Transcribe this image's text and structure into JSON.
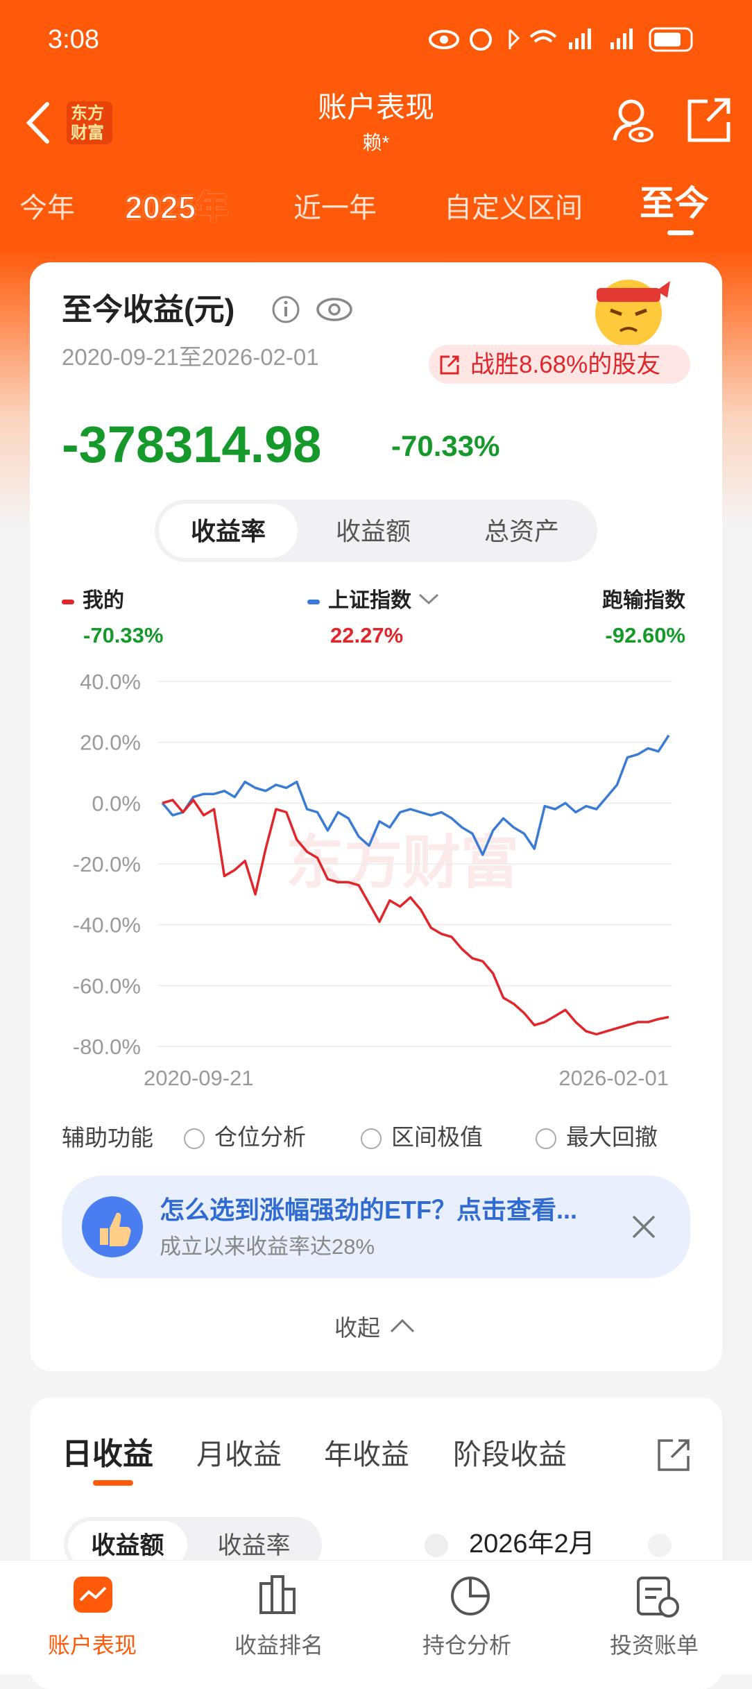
{
  "status_bar": {
    "time": "3:08"
  },
  "header": {
    "title": "账户表现",
    "subtitle": "赖*",
    "logo": [
      "东方",
      "财富"
    ]
  },
  "period_tabs": [
    "今年",
    "2025年",
    "近一年",
    "自定义区间",
    "至今"
  ],
  "summary": {
    "title": "至今收益(元)",
    "date_range": "2020-09-21至2026-02-01",
    "badge": "战胜8.68%的股友",
    "amount": "-378314.98",
    "rate": "-70.33%"
  },
  "segment_tabs": [
    "收益率",
    "收益额",
    "总资产"
  ],
  "legend_values": [
    "-70.33%",
    "22.27%",
    "-92.60%"
  ],
  "legend_extra": "跑输指数",
  "chart": {
    "type": "line",
    "categories": [
      "2020-09-21",
      null,
      null,
      null,
      null,
      null,
      null,
      null,
      null,
      null,
      null,
      null,
      null,
      null,
      null,
      null,
      null,
      null,
      null,
      null,
      null,
      null,
      null,
      null,
      null,
      null,
      null,
      null,
      null,
      null,
      null,
      null,
      null,
      null,
      null,
      null,
      null,
      null,
      null,
      null,
      null,
      null,
      null,
      null,
      null,
      null,
      null,
      null,
      null,
      "2026-02-01"
    ],
    "series": [
      {
        "name": "我的",
        "color": "#e0262a",
        "values": [
          0,
          1,
          -3,
          1,
          -4,
          -2,
          -24,
          -22,
          -19,
          -30,
          -15,
          -2,
          -3,
          -12,
          -16,
          -18,
          -25,
          -26,
          -26,
          -27,
          -33,
          -39,
          -32,
          -34,
          -31,
          -35,
          -41,
          -43,
          -44,
          -48,
          -51,
          -52,
          -56,
          -64,
          -66,
          -69,
          -73,
          -72,
          -70,
          -68,
          -72,
          -75,
          -76,
          -75,
          -74,
          -73,
          -72,
          -72,
          -71,
          -70.33
        ]
      },
      {
        "name": "上证指数",
        "color": "#3a7bd5",
        "values": [
          0,
          -4,
          -3,
          2,
          3,
          3,
          4,
          2,
          7,
          5,
          4,
          6,
          5,
          7,
          -2,
          -3,
          -9,
          -3,
          -5,
          -11,
          -14,
          -6,
          -8,
          -3,
          -2,
          -3,
          -4,
          -3,
          -5,
          -8,
          -10,
          -17,
          -9,
          -5,
          -8,
          -10,
          -15,
          -1,
          -2,
          0,
          -3,
          -1,
          -2,
          2,
          6,
          15,
          16,
          18,
          17,
          22.27
        ]
      }
    ],
    "ylim": [
      -80,
      40
    ],
    "yticks": [
      {
        "value": -80,
        "label": "-80.0%"
      },
      {
        "value": -60,
        "label": "-60.0%"
      },
      {
        "value": -40,
        "label": "-40.0%"
      },
      {
        "value": -20,
        "label": "-20.0%"
      },
      {
        "value": 0,
        "label": "0.0%"
      },
      {
        "value": 20,
        "label": "20.0%"
      },
      {
        "value": 40,
        "label": "40.0%"
      }
    ],
    "grid": true
  },
  "watermark": "东方财富",
  "tools": {
    "label": "辅助功能",
    "options": [
      "仓位分析",
      "区间极值",
      "最大回撤"
    ]
  },
  "promo": {
    "title": "怎么选到涨幅强劲的ETF？点击查看...",
    "subtitle": "成立以来收益率达28%"
  },
  "collapse": "收起",
  "earnings_tabs": [
    "日收益",
    "月收益",
    "年收益",
    "阶段收益"
  ],
  "earnings_toggle": [
    "收益额",
    "收益率"
  ],
  "month": "2026年2月",
  "bottom_nav": [
    "账户表现",
    "收益排名",
    "持仓分析",
    "投资账单"
  ]
}
